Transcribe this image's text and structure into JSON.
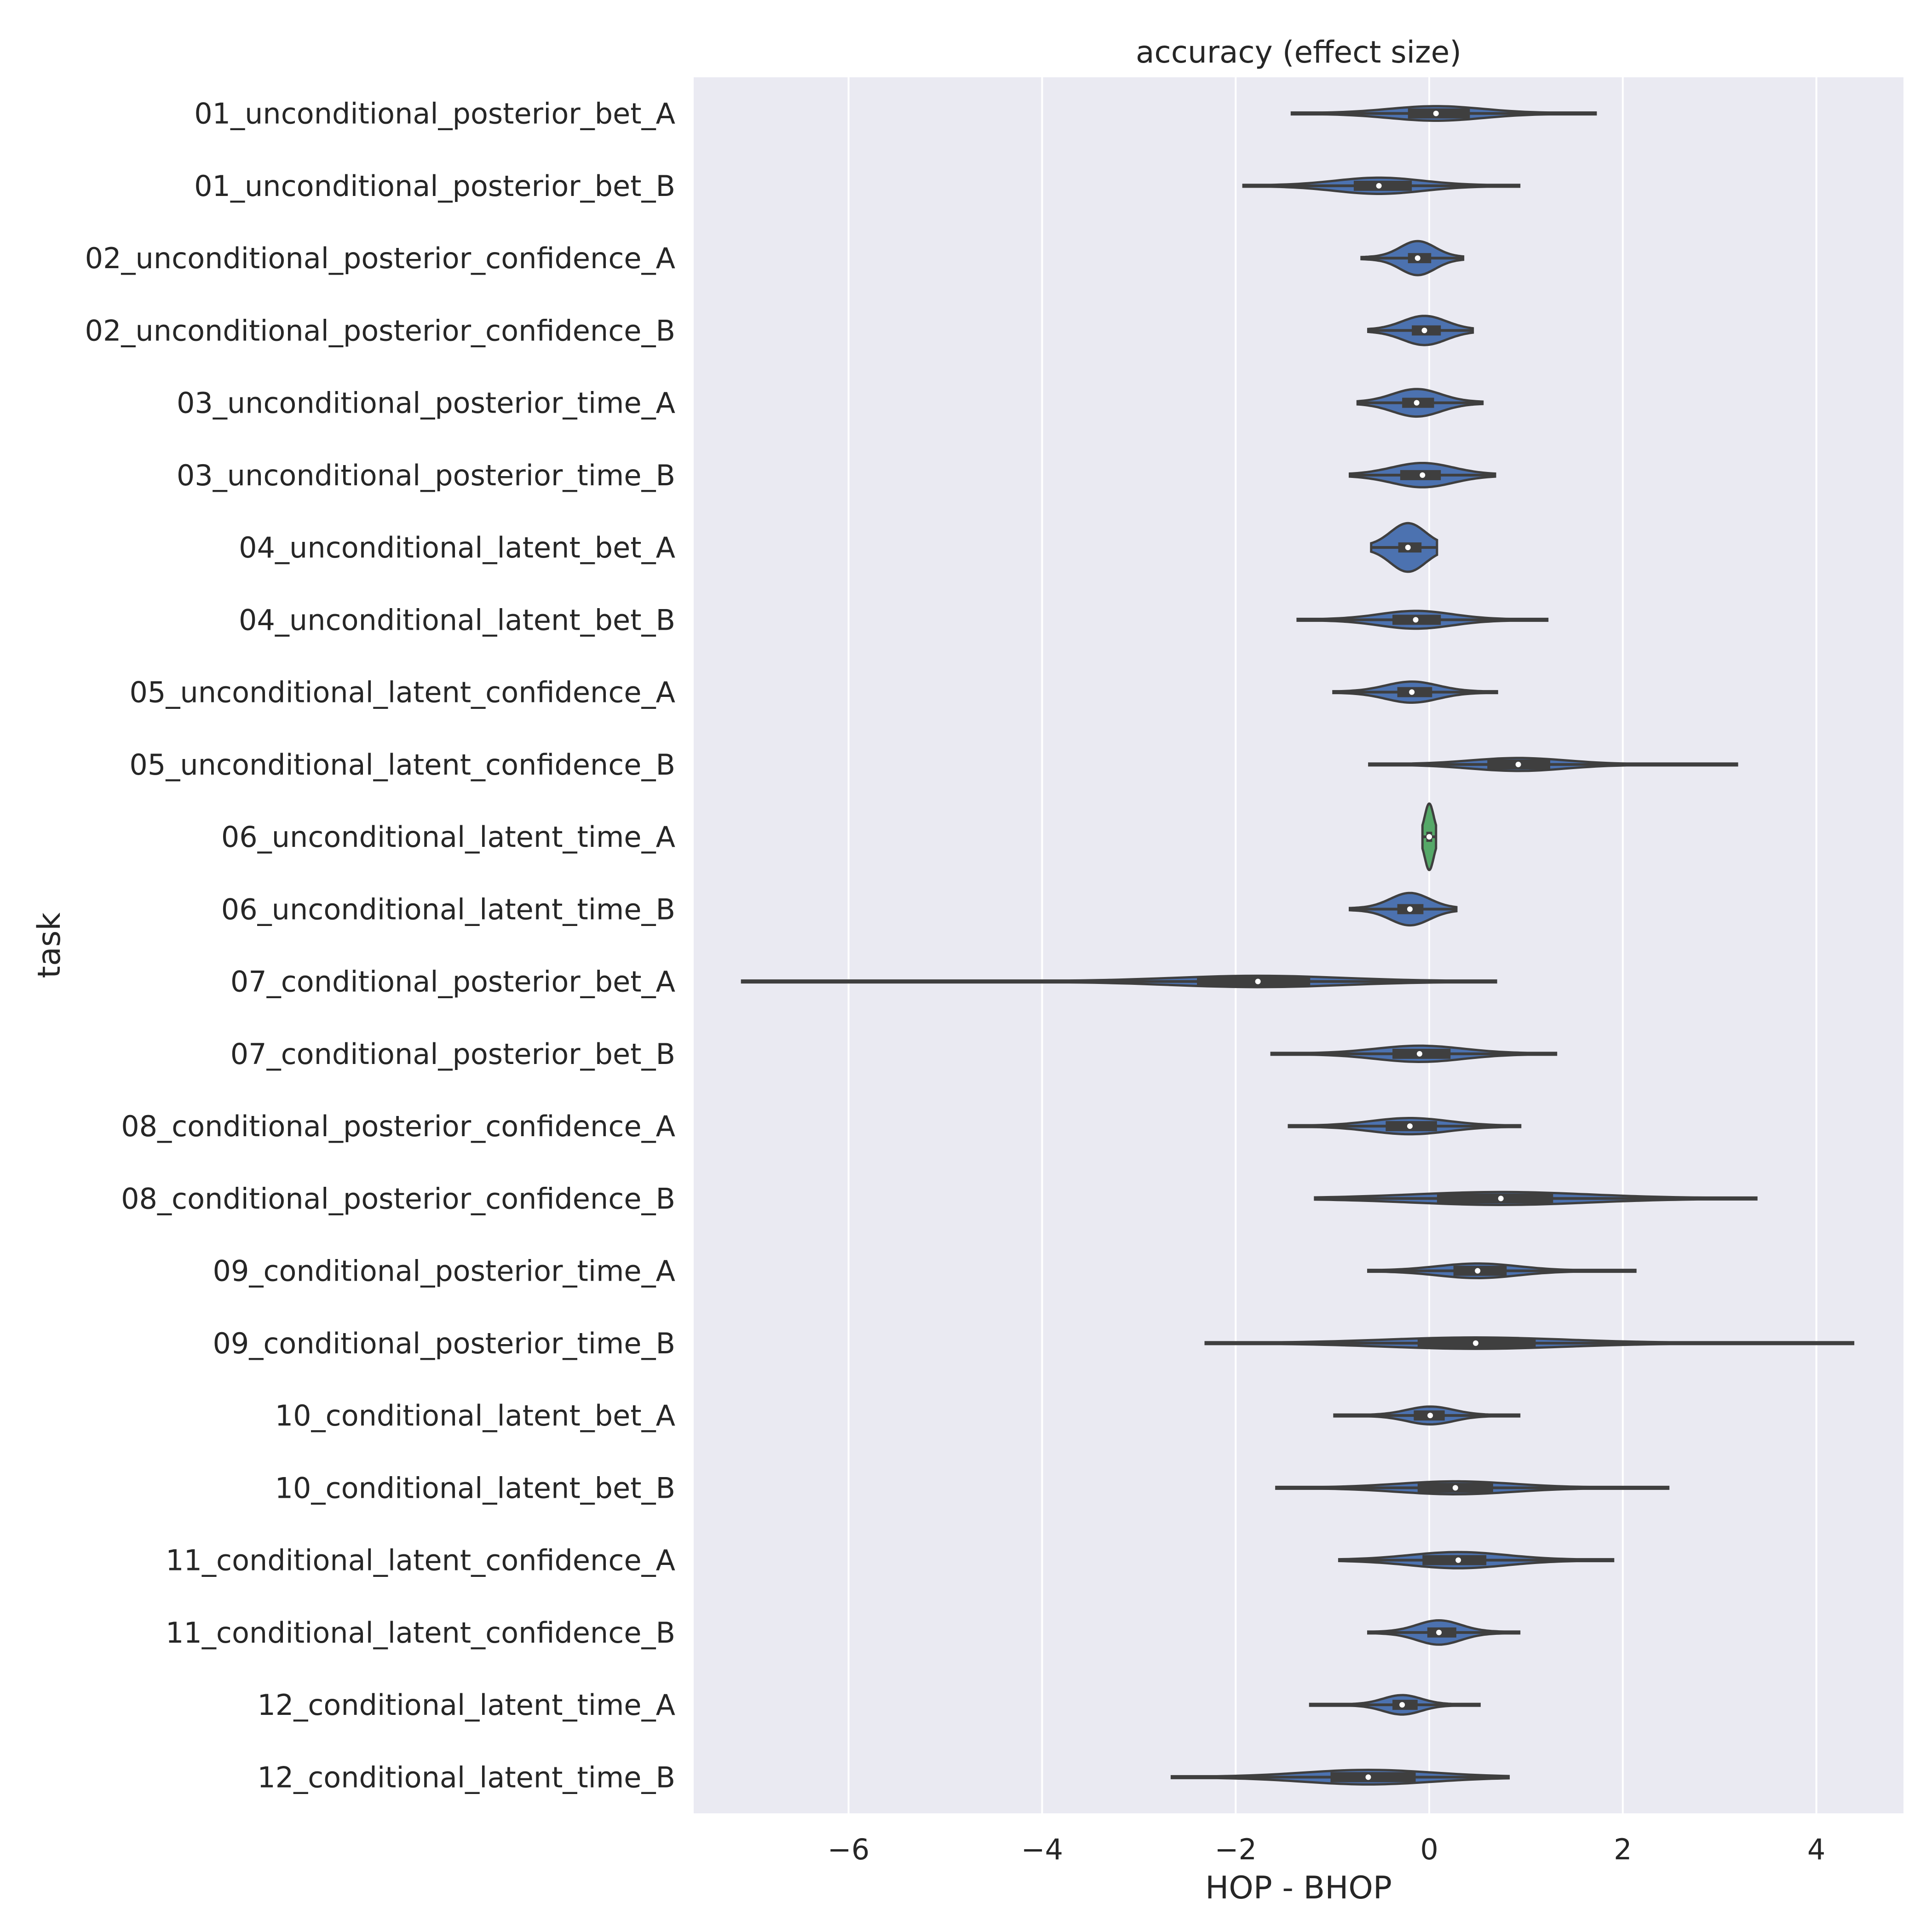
{
  "chart_data": {
    "type": "violin",
    "orientation": "horizontal",
    "title": "accuracy (effect size)",
    "xlabel": "HOP - BHOP",
    "ylabel": "task",
    "xlim": [
      -7.6,
      4.9
    ],
    "xticks": [
      -6,
      -4,
      -2,
      0,
      2,
      4
    ],
    "xtick_labels": [
      "−6",
      "−4",
      "−2",
      "0",
      "2",
      "4"
    ],
    "grid": true,
    "background": "#eaeaf2",
    "grid_color": "#ffffff",
    "violin_fill": "#4c72b0",
    "highlight_fill": "#55a868",
    "edge_color": "#3f3f3f",
    "categories": [
      "01_unconditional_posterior_bet_A",
      "01_unconditional_posterior_bet_B",
      "02_unconditional_posterior_confidence_A",
      "02_unconditional_posterior_confidence_B",
      "03_unconditional_posterior_time_A",
      "03_unconditional_posterior_time_B",
      "04_unconditional_latent_bet_A",
      "04_unconditional_latent_bet_B",
      "05_unconditional_latent_confidence_A",
      "05_unconditional_latent_confidence_B",
      "06_unconditional_latent_time_A",
      "06_unconditional_latent_time_B",
      "07_conditional_posterior_bet_A",
      "07_conditional_posterior_bet_B",
      "08_conditional_posterior_confidence_A",
      "08_conditional_posterior_confidence_B",
      "09_conditional_posterior_time_A",
      "09_conditional_posterior_time_B",
      "10_conditional_latent_bet_A",
      "10_conditional_latent_bet_B",
      "11_conditional_latent_confidence_A",
      "11_conditional_latent_confidence_B",
      "12_conditional_latent_time_A",
      "12_conditional_latent_time_B"
    ],
    "stats": [
      {
        "min": -1.42,
        "q1": -0.22,
        "median": 0.07,
        "q3": 0.42,
        "max": 1.72,
        "width": 0.18
      },
      {
        "min": -1.92,
        "q1": -0.78,
        "median": -0.52,
        "q3": -0.18,
        "max": 0.93,
        "width": 0.2
      },
      {
        "min": -0.7,
        "q1": -0.22,
        "median": -0.12,
        "q3": 0.02,
        "max": 0.35,
        "width": 0.42
      },
      {
        "min": -0.63,
        "q1": -0.18,
        "median": -0.05,
        "q3": 0.12,
        "max": 0.45,
        "width": 0.36
      },
      {
        "min": -0.74,
        "q1": -0.28,
        "median": -0.13,
        "q3": 0.05,
        "max": 0.55,
        "width": 0.34
      },
      {
        "min": -0.82,
        "q1": -0.3,
        "median": -0.07,
        "q3": 0.12,
        "max": 0.68,
        "width": 0.3
      },
      {
        "min": -0.6,
        "q1": -0.32,
        "median": -0.22,
        "q3": -0.08,
        "max": 0.08,
        "width": 0.6
      },
      {
        "min": -1.36,
        "q1": -0.38,
        "median": -0.14,
        "q3": 0.12,
        "max": 1.22,
        "width": 0.22
      },
      {
        "min": -0.99,
        "q1": -0.33,
        "median": -0.18,
        "q3": 0.03,
        "max": 0.7,
        "width": 0.26
      },
      {
        "min": -0.62,
        "q1": 0.6,
        "median": 0.92,
        "q3": 1.25,
        "max": 3.18,
        "width": 0.16
      },
      {
        "min": -0.07,
        "q1": -0.03,
        "median": 0.0,
        "q3": 0.03,
        "max": 0.07,
        "width": 0.82,
        "highlight": true
      },
      {
        "min": -0.82,
        "q1": -0.33,
        "median": -0.2,
        "q3": -0.06,
        "max": 0.28,
        "width": 0.4
      },
      {
        "min": -7.1,
        "q1": -2.4,
        "median": -1.77,
        "q3": -1.23,
        "max": 0.69,
        "width": 0.14
      },
      {
        "min": -1.63,
        "q1": -0.38,
        "median": -0.1,
        "q3": 0.22,
        "max": 1.31,
        "width": 0.2
      },
      {
        "min": -1.45,
        "q1": -0.45,
        "median": -0.2,
        "q3": 0.08,
        "max": 0.94,
        "width": 0.2
      },
      {
        "min": -1.18,
        "q1": 0.08,
        "median": 0.74,
        "q3": 1.28,
        "max": 3.38,
        "width": 0.16
      },
      {
        "min": -0.63,
        "q1": 0.25,
        "median": 0.5,
        "q3": 0.8,
        "max": 2.13,
        "width": 0.18
      },
      {
        "min": -2.31,
        "q1": -0.12,
        "median": 0.48,
        "q3": 1.1,
        "max": 4.38,
        "width": 0.14
      },
      {
        "min": -0.98,
        "q1": -0.16,
        "median": 0.01,
        "q3": 0.16,
        "max": 0.93,
        "width": 0.22
      },
      {
        "min": -1.58,
        "q1": -0.12,
        "median": 0.27,
        "q3": 0.66,
        "max": 2.47,
        "width": 0.16
      },
      {
        "min": -0.93,
        "q1": -0.07,
        "median": 0.3,
        "q3": 0.59,
        "max": 1.9,
        "width": 0.2
      },
      {
        "min": -0.63,
        "q1": -0.02,
        "median": 0.1,
        "q3": 0.28,
        "max": 0.93,
        "width": 0.3
      },
      {
        "min": -1.23,
        "q1": -0.38,
        "median": -0.28,
        "q3": -0.12,
        "max": 0.52,
        "width": 0.24
      },
      {
        "min": -2.66,
        "q1": -1.02,
        "median": -0.63,
        "q3": -0.14,
        "max": 0.82,
        "width": 0.18
      }
    ]
  }
}
